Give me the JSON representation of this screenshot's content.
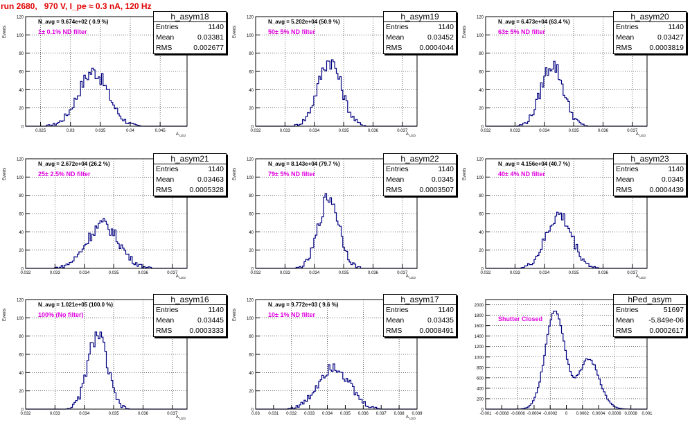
{
  "title": "run 2680,   970 V, I_pe ≈ 0.3 nA, 120 Hz",
  "stats_labels": {
    "entries": "Entries",
    "mean": "Mean",
    "rms": "RMS"
  },
  "colors": {
    "histogram": "#000080",
    "title": "#e00000",
    "annotation": "#e000e0",
    "grid": "#000000"
  },
  "chart_data": [
    {
      "type": "histogram",
      "name": "h_asym18",
      "entries": "1140",
      "mean": "0.03381",
      "rms": "0.002677",
      "navg": "N_avg = 9.674e+02 ( 0.9 %)",
      "filter": "1± 0.1% ND filter",
      "ylabel": "Events",
      "xlabel": "A_LED",
      "xlim": [
        0.0225,
        0.0495
      ],
      "ylim": [
        0,
        120
      ],
      "yticks": [
        0,
        20,
        40,
        60,
        80,
        100,
        120
      ],
      "xticks": [
        {
          "v": 0.025,
          "l": "0.025"
        },
        {
          "v": 0.03,
          "l": "0.03"
        },
        {
          "v": 0.035,
          "l": "0.035"
        },
        {
          "v": 0.04,
          "l": "0.04"
        },
        {
          "v": 0.045,
          "l": "0.045"
        }
      ],
      "gridx": [
        0.025,
        0.03,
        0.035,
        0.04,
        0.045
      ],
      "peak": [
        {
          "mu": 0.03381,
          "sigma": 0.0025,
          "h": 60
        }
      ]
    },
    {
      "type": "histogram",
      "name": "h_asym19",
      "entries": "1140",
      "mean": "0.03452",
      "rms": "0.0004044",
      "navg": "N_avg = 5.202e+04 (50.9 %)",
      "filter": "50± 5% ND filter",
      "ylabel": "Events",
      "xlabel": "A_LED",
      "xlim": [
        0.032,
        0.0375
      ],
      "ylim": [
        0,
        120
      ],
      "yticks": [
        0,
        20,
        40,
        60,
        80,
        100,
        120
      ],
      "xticks": [
        {
          "v": 0.032,
          "l": "0.032"
        },
        {
          "v": 0.033,
          "l": "0.033"
        },
        {
          "v": 0.034,
          "l": "0.034"
        },
        {
          "v": 0.035,
          "l": "0.035"
        },
        {
          "v": 0.036,
          "l": "0.036"
        },
        {
          "v": 0.037,
          "l": "0.037"
        }
      ],
      "gridx": [
        0.033,
        0.034,
        0.035,
        0.036,
        0.037
      ],
      "peak": [
        {
          "mu": 0.03452,
          "sigma": 0.0004,
          "h": 72
        }
      ]
    },
    {
      "type": "histogram",
      "name": "h_asym20",
      "entries": "1140",
      "mean": "0.03427",
      "rms": "0.0003819",
      "navg": "N_avg = 6.473e+04 (63.4 %)",
      "filter": "63± 5% ND filter",
      "ylabel": "Events",
      "xlabel": "A_LED",
      "xlim": [
        0.032,
        0.0375
      ],
      "ylim": [
        0,
        120
      ],
      "yticks": [
        0,
        20,
        40,
        60,
        80,
        100,
        120
      ],
      "xticks": [
        {
          "v": 0.032,
          "l": "0.032"
        },
        {
          "v": 0.033,
          "l": "0.033"
        },
        {
          "v": 0.034,
          "l": "0.034"
        },
        {
          "v": 0.035,
          "l": "0.035"
        },
        {
          "v": 0.036,
          "l": "0.036"
        },
        {
          "v": 0.037,
          "l": "0.037"
        }
      ],
      "gridx": [
        0.033,
        0.034,
        0.035,
        0.036,
        0.037
      ],
      "peak": [
        {
          "mu": 0.03427,
          "sigma": 0.00038,
          "h": 68
        }
      ]
    },
    {
      "type": "histogram",
      "name": "h_asym21",
      "entries": "1140",
      "mean": "0.03463",
      "rms": "0.0005328",
      "navg": "N_avg = 2.672e+04 (26.2 %)",
      "filter": "25± 2.5% ND filter",
      "ylabel": "Events",
      "xlabel": "A_LED",
      "xlim": [
        0.032,
        0.0375
      ],
      "ylim": [
        0,
        120
      ],
      "yticks": [
        0,
        20,
        40,
        60,
        80,
        100,
        120
      ],
      "xticks": [
        {
          "v": 0.032,
          "l": "0.032"
        },
        {
          "v": 0.033,
          "l": "0.033"
        },
        {
          "v": 0.034,
          "l": "0.034"
        },
        {
          "v": 0.035,
          "l": "0.035"
        },
        {
          "v": 0.036,
          "l": "0.036"
        },
        {
          "v": 0.037,
          "l": "0.037"
        }
      ],
      "gridx": [
        0.033,
        0.034,
        0.035,
        0.036,
        0.037
      ],
      "peak": [
        {
          "mu": 0.03463,
          "sigma": 0.00055,
          "h": 48
        }
      ]
    },
    {
      "type": "histogram",
      "name": "h_asym22",
      "entries": "1140",
      "mean": "0.0345",
      "rms": "0.0003507",
      "navg": "N_avg = 8.143e+04 (79.7 %)",
      "filter": "79± 5% ND filter",
      "ylabel": "Events",
      "xlabel": "A_LED",
      "xlim": [
        0.032,
        0.0375
      ],
      "ylim": [
        0,
        120
      ],
      "yticks": [
        0,
        20,
        40,
        60,
        80,
        100,
        120
      ],
      "xticks": [
        {
          "v": 0.032,
          "l": "0.032"
        },
        {
          "v": 0.033,
          "l": "0.033"
        },
        {
          "v": 0.034,
          "l": "0.034"
        },
        {
          "v": 0.035,
          "l": "0.035"
        },
        {
          "v": 0.036,
          "l": "0.036"
        },
        {
          "v": 0.037,
          "l": "0.037"
        }
      ],
      "gridx": [
        0.033,
        0.034,
        0.035,
        0.036,
        0.037
      ],
      "peak": [
        {
          "mu": 0.0345,
          "sigma": 0.00035,
          "h": 78
        }
      ]
    },
    {
      "type": "histogram",
      "name": "h_asym23",
      "entries": "1140",
      "mean": "0.0345",
      "rms": "0.0004439",
      "navg": "N_avg = 4.156e+04 (40.7 %)",
      "filter": "40± 4% ND filter",
      "ylabel": "Events",
      "xlabel": "A_LED",
      "xlim": [
        0.032,
        0.0375
      ],
      "ylim": [
        0,
        120
      ],
      "yticks": [
        0,
        20,
        40,
        60,
        80,
        100,
        120
      ],
      "xticks": [
        {
          "v": 0.032,
          "l": "0.032"
        },
        {
          "v": 0.033,
          "l": "0.033"
        },
        {
          "v": 0.034,
          "l": "0.034"
        },
        {
          "v": 0.035,
          "l": "0.035"
        },
        {
          "v": 0.036,
          "l": "0.036"
        },
        {
          "v": 0.037,
          "l": "0.037"
        }
      ],
      "gridx": [
        0.033,
        0.034,
        0.035,
        0.036,
        0.037
      ],
      "peak": [
        {
          "mu": 0.0345,
          "sigma": 0.00044,
          "h": 58
        }
      ]
    },
    {
      "type": "histogram",
      "name": "h_asym16",
      "entries": "1140",
      "mean": "0.03445",
      "rms": "0.0003333",
      "navg": "N_avg = 1.021e+05 (100.0 %)",
      "filter": "100% (No filter)",
      "ylabel": "Events",
      "xlabel": "A_LED",
      "xlim": [
        0.032,
        0.0375
      ],
      "ylim": [
        0,
        120
      ],
      "yticks": [
        0,
        20,
        40,
        60,
        80,
        100,
        120
      ],
      "xticks": [
        {
          "v": 0.032,
          "l": "0.032"
        },
        {
          "v": 0.033,
          "l": "0.033"
        },
        {
          "v": 0.034,
          "l": "0.034"
        },
        {
          "v": 0.035,
          "l": "0.035"
        },
        {
          "v": 0.036,
          "l": "0.036"
        },
        {
          "v": 0.037,
          "l": "0.037"
        }
      ],
      "gridx": [
        0.033,
        0.034,
        0.035,
        0.036,
        0.037
      ],
      "peak": [
        {
          "mu": 0.03445,
          "sigma": 0.00033,
          "h": 82
        }
      ]
    },
    {
      "type": "histogram",
      "name": "h_asym17",
      "entries": "1140",
      "mean": "0.03435",
      "rms": "0.0008491",
      "navg": "N_avg = 9.772e+03 ( 9.6 %)",
      "filter": "10± 1% ND filter",
      "ylabel": "Events",
      "xlabel": "A_LED",
      "xlim": [
        0.03,
        0.039
      ],
      "ylim": [
        0,
        120
      ],
      "yticks": [
        0,
        20,
        40,
        60,
        80,
        100,
        120
      ],
      "xticks": [
        {
          "v": 0.03,
          "l": "0.03"
        },
        {
          "v": 0.031,
          "l": "0.031"
        },
        {
          "v": 0.032,
          "l": "0.032"
        },
        {
          "v": 0.033,
          "l": "0.033"
        },
        {
          "v": 0.034,
          "l": "0.034"
        },
        {
          "v": 0.035,
          "l": "0.035"
        },
        {
          "v": 0.036,
          "l": "0.036"
        },
        {
          "v": 0.037,
          "l": "0.037"
        },
        {
          "v": 0.038,
          "l": "0.038"
        },
        {
          "v": 0.039,
          "l": "0.039"
        }
      ],
      "gridx": [
        0.032,
        0.034,
        0.036,
        0.038
      ],
      "peak": [
        {
          "mu": 0.03435,
          "sigma": 0.00085,
          "h": 48
        }
      ]
    },
    {
      "type": "histogram",
      "name": "hPed_asym",
      "entries": "51697",
      "mean": "-5.849e-06",
      "rms": "0.0002617",
      "navg": "",
      "filter": "Shutter Closed",
      "ylabel": "",
      "xlabel": "",
      "xlim": [
        -0.001,
        0.001
      ],
      "ylim": [
        0,
        2100
      ],
      "yticks": [
        0,
        200,
        400,
        600,
        800,
        1000,
        1200,
        1400,
        1600,
        1800,
        2000
      ],
      "xticks": [
        {
          "v": -0.001,
          "l": "-0.001"
        },
        {
          "v": -0.0008,
          "l": "-0.0008"
        },
        {
          "v": -0.0006,
          "l": "-0.0006"
        },
        {
          "v": -0.0004,
          "l": "-0.0004"
        },
        {
          "v": -0.0002,
          "l": "-0.0002"
        },
        {
          "v": 0,
          "l": "0"
        },
        {
          "v": 0.0002,
          "l": "0.0002"
        },
        {
          "v": 0.0004,
          "l": "0.0004"
        },
        {
          "v": 0.0006,
          "l": "0.0006"
        },
        {
          "v": 0.0008,
          "l": "0.0008"
        },
        {
          "v": 0.001,
          "l": "0.001"
        }
      ],
      "gridx": [
        -0.0006,
        -0.0002,
        0.0002,
        0.0006
      ],
      "peak": [
        {
          "mu": -0.00014,
          "sigma": 0.00012,
          "h": 1900
        },
        {
          "mu": 0.00028,
          "sigma": 0.00013,
          "h": 950
        }
      ]
    }
  ]
}
